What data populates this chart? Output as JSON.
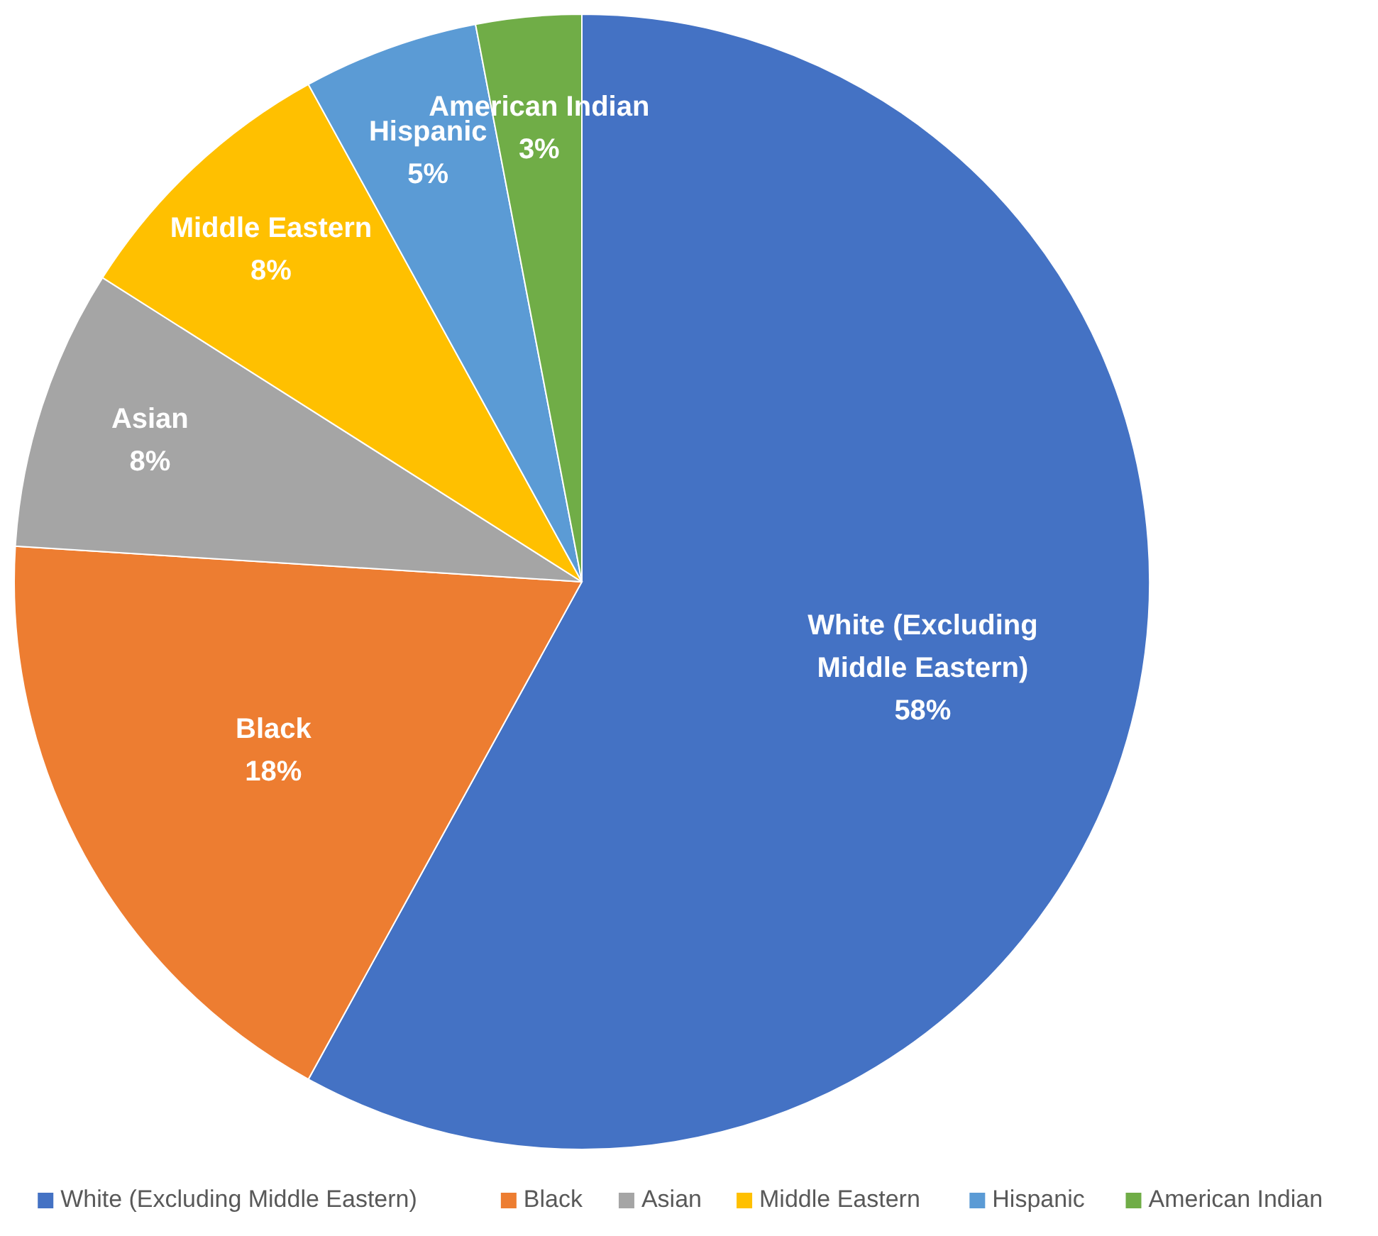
{
  "chart_data": {
    "type": "pie",
    "categories": [
      "White (Excluding Middle Eastern)",
      "Black",
      "Asian",
      "Middle Eastern",
      "Hispanic",
      "American Indian"
    ],
    "values": [
      58,
      18,
      8,
      8,
      5,
      3
    ],
    "value_labels": [
      "58%",
      "18%",
      "8%",
      "8%",
      "5%",
      "3%"
    ],
    "colors": [
      "#4472c4",
      "#ed7d31",
      "#a5a5a5",
      "#ffc000",
      "#5b9bd5",
      "#70ad47"
    ],
    "legend": "bottom"
  }
}
